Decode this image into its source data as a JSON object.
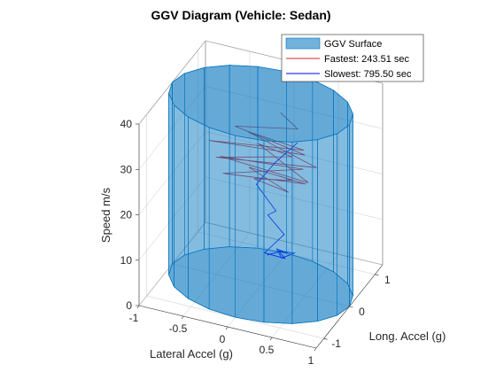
{
  "chart_data": {
    "type": "surface-3d",
    "title": "GGV Diagram (Vehicle: Sedan)",
    "xlabel": "Lateral Accel (g)",
    "ylabel": "Long. Accel (g)",
    "zlabel": "Speed m/s",
    "xlim": [
      -1,
      1
    ],
    "ylim": [
      -1.3,
      1.3
    ],
    "zlim": [
      0,
      40
    ],
    "x_ticks": [
      -1,
      -0.5,
      0,
      0.5,
      1
    ],
    "x_tick_labels": [
      "-1",
      "-0.5",
      "0",
      "0.5",
      "1"
    ],
    "y_ticks": [
      -1,
      0,
      1
    ],
    "y_tick_labels": [
      "-1",
      "0",
      "1"
    ],
    "z_ticks": [
      0,
      10,
      20,
      30,
      40
    ],
    "z_tick_labels": [
      "0",
      "10",
      "20",
      "30",
      "40"
    ],
    "grid": true,
    "legend_position": "top-right",
    "surface": {
      "name": "GGV Surface",
      "shape": "cylinder",
      "radius_g": 1.0,
      "speed_range": [
        0,
        40
      ],
      "color": "#0072BD"
    },
    "series": [
      {
        "name": "Fastest: 243.51 sec",
        "color": "#d62728",
        "x": [
          0.05,
          0.3,
          -0.35,
          0.5,
          -0.55,
          0.4,
          -0.3,
          0.6,
          -0.45,
          0.25,
          -0.2,
          0.55,
          -0.5,
          0.35,
          -0.4,
          0.45,
          -0.25,
          0.3,
          -0.15,
          0.2,
          0.05
        ],
        "y": [
          0.6,
          0.4,
          0.2,
          0.0,
          -0.1,
          0.3,
          0.5,
          0.1,
          -0.2,
          0.35,
          0.6,
          -0.05,
          0.15,
          0.45,
          -0.1,
          0.2,
          0.4,
          0.05,
          0.25,
          0.5,
          0.6
        ],
        "z": [
          34,
          33,
          32,
          31,
          30,
          29.5,
          29,
          28,
          27.5,
          27,
          26,
          25.5,
          25,
          24,
          23.5,
          23,
          22,
          21.5,
          21,
          20.5,
          20
        ]
      },
      {
        "name": "Slowest: 795.50 sec",
        "color": "#0000ff",
        "x": [
          0.3,
          0.1,
          -0.05,
          0.2,
          0.05,
          0.25,
          0.1,
          0.3,
          0.2,
          0.35,
          0.25,
          0.15,
          0.3,
          0.2,
          0.1
        ],
        "y": [
          0.4,
          0.2,
          0.0,
          -0.1,
          0.1,
          0.05,
          -0.2,
          -0.1,
          0.0,
          0.1,
          -0.05,
          0.1,
          0.0,
          0.05,
          -0.1
        ],
        "z": [
          30,
          26,
          22,
          18,
          15,
          12,
          9,
          8,
          8.5,
          8,
          7.5,
          8,
          8.5,
          8,
          7.8
        ]
      }
    ]
  }
}
